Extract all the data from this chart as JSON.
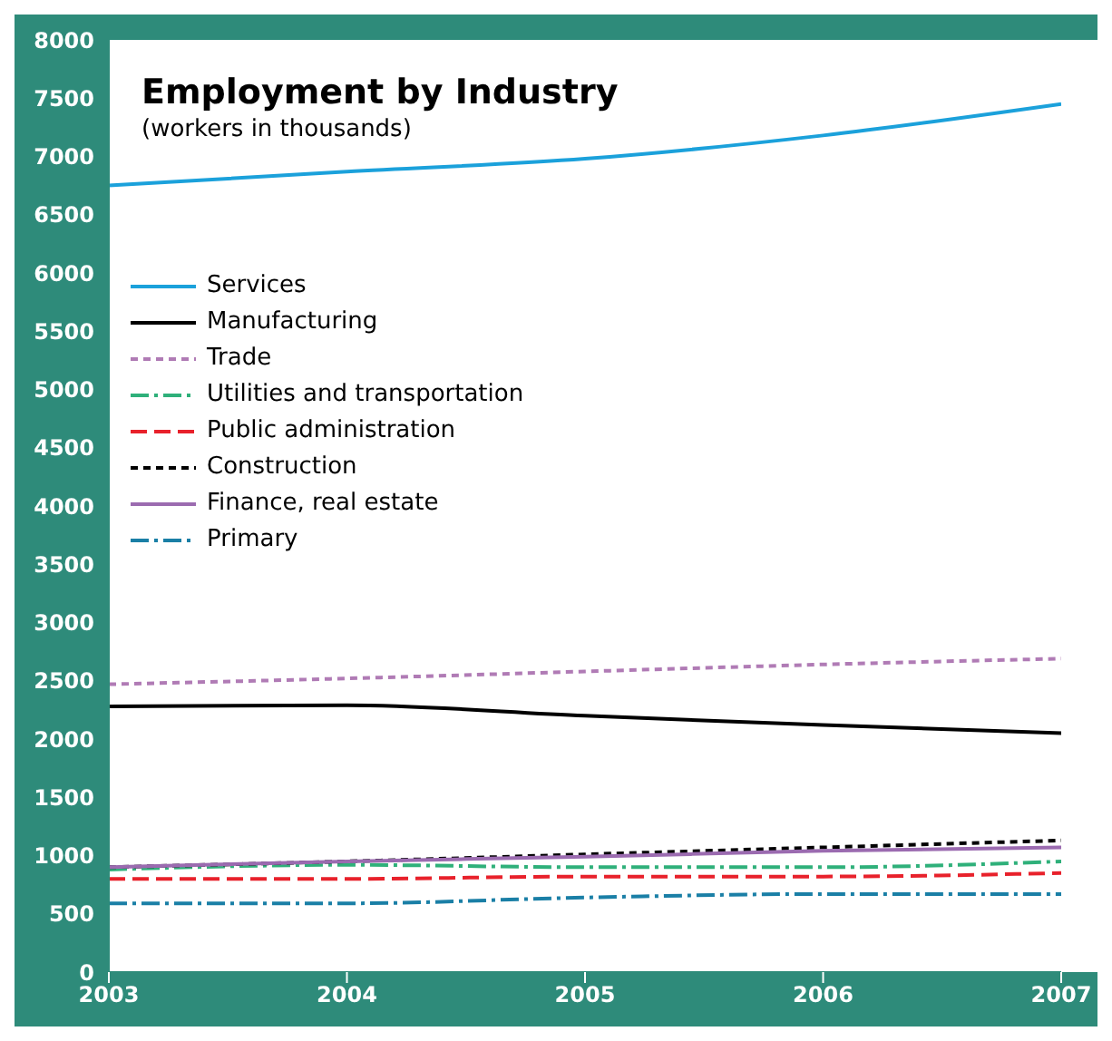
{
  "chart_data": {
    "type": "line",
    "title": "Employment by Industry",
    "subtitle": "(workers in thousands)",
    "x": [
      2003,
      2004,
      2005,
      2006,
      2007
    ],
    "xlim": [
      2003,
      2007
    ],
    "xticks": [
      2003,
      2004,
      2005,
      2006,
      2007
    ],
    "ylim": [
      0,
      8000
    ],
    "yticks": [
      0,
      500,
      1000,
      1500,
      2000,
      2500,
      3000,
      3500,
      4000,
      4500,
      5000,
      5500,
      6000,
      6500,
      7000,
      7500,
      8000
    ],
    "legend": "top left",
    "grid": false,
    "marker": "none",
    "series": [
      {
        "name": "Services",
        "color": "#1ba1db",
        "line_style": "solid",
        "values": [
          6750,
          6870,
          6980,
          7180,
          7450
        ]
      },
      {
        "name": "Manufacturing",
        "color": "#000000",
        "line_style": "solid",
        "values": [
          2280,
          2290,
          2200,
          2120,
          2050
        ]
      },
      {
        "name": "Trade",
        "color": "#b07bb5",
        "line_style": "dotted",
        "values": [
          2470,
          2520,
          2580,
          2640,
          2690
        ]
      },
      {
        "name": "Utilities and transportation",
        "color": "#2fb07a",
        "line_style": "dashdot",
        "values": [
          880,
          920,
          900,
          900,
          950
        ]
      },
      {
        "name": "Public administration",
        "color": "#e8212b",
        "line_style": "dashed",
        "values": [
          800,
          800,
          820,
          820,
          850
        ]
      },
      {
        "name": "Construction",
        "color": "#000000",
        "line_style": "dotted",
        "values": [
          900,
          950,
          1010,
          1070,
          1130
        ]
      },
      {
        "name": "Finance, real estate",
        "color": "#9b6bb0",
        "line_style": "solid",
        "values": [
          900,
          950,
          990,
          1040,
          1070
        ]
      },
      {
        "name": "Primary",
        "color": "#1a7fa6",
        "line_style": "dashdot",
        "values": [
          590,
          590,
          640,
          670,
          670
        ]
      }
    ]
  }
}
